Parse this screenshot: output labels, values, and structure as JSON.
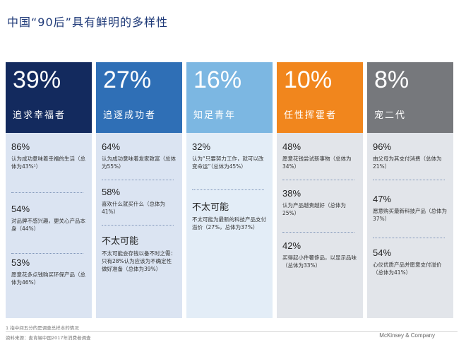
{
  "title": "中国“90后”具有鲜明的多样性",
  "columns": [
    {
      "pct": "39%",
      "label": "追求幸福者",
      "head_color": "#132a5e",
      "body_color": "#dbe4f2",
      "s1_num": "86%",
      "s1_desc": "认为成功意味着幸福的生活（总体为43%¹）",
      "s2_num": "54%",
      "s2_desc": "对品牌不感兴趣，更关心产品本身（44%）",
      "s3_num": "53%",
      "s3_desc": "愿意花多点钱购买环保产品（总体为46%）"
    },
    {
      "pct": "27%",
      "label": "追逐成功者",
      "head_color": "#2f6fb6",
      "body_color": "#dbe4f2",
      "s1_num": "64%",
      "s1_desc": "认为成功意味着发家致富（总体为55%）",
      "s2_num": "58%",
      "s2_desc": "喜欢什么就买什么（总体为41%）",
      "s3_heading": "不太可能",
      "s3_desc": "不太可能会存钱以备不时之需：只有28%认为应该为不确定性做好准备（总体为39%）"
    },
    {
      "pct": "16%",
      "label": "知足青年",
      "head_color": "#7cb7e2",
      "body_color": "#e3edf7",
      "s1_num": "32%",
      "s1_desc": "认为“只要努力工作，就可以改变命运”（总体为45%）",
      "s2_heading": "不太可能",
      "s2_desc": "不太可能为最新的科技产品支付溢价（27%，总体为37%）"
    },
    {
      "pct": "10%",
      "label": "任性挥霍者",
      "head_color": "#f1861d",
      "body_color": "#e2e5ea",
      "s1_num": "48%",
      "s1_desc": "愿意花钱尝试新事物（总体为34%）",
      "s2_num": "38%",
      "s2_desc": "认为产品越贵越好（总体为25%）",
      "s3_num": "42%",
      "s3_desc": "买得起小件奢侈品，以显示品味（总体为33%）"
    },
    {
      "pct": "8%",
      "label": "宠二代",
      "head_color": "#76787c",
      "body_color": "#e2e5ea",
      "s1_num": "96%",
      "s1_desc": "由父母为其支付消费（总体为21%）",
      "s2_num": "47%",
      "s2_desc": "愿意购买最新科技产品（总体为37%）",
      "s3_num": "54%",
      "s3_desc": "心仪优质产品并愿意支付溢价（总体为41%）"
    }
  ],
  "footnote": "1 指中间五分的是调查总样本的情况",
  "source": "资料来源：麦肯锡中国2017年消费者调查",
  "brand": "McKinsey & Company"
}
